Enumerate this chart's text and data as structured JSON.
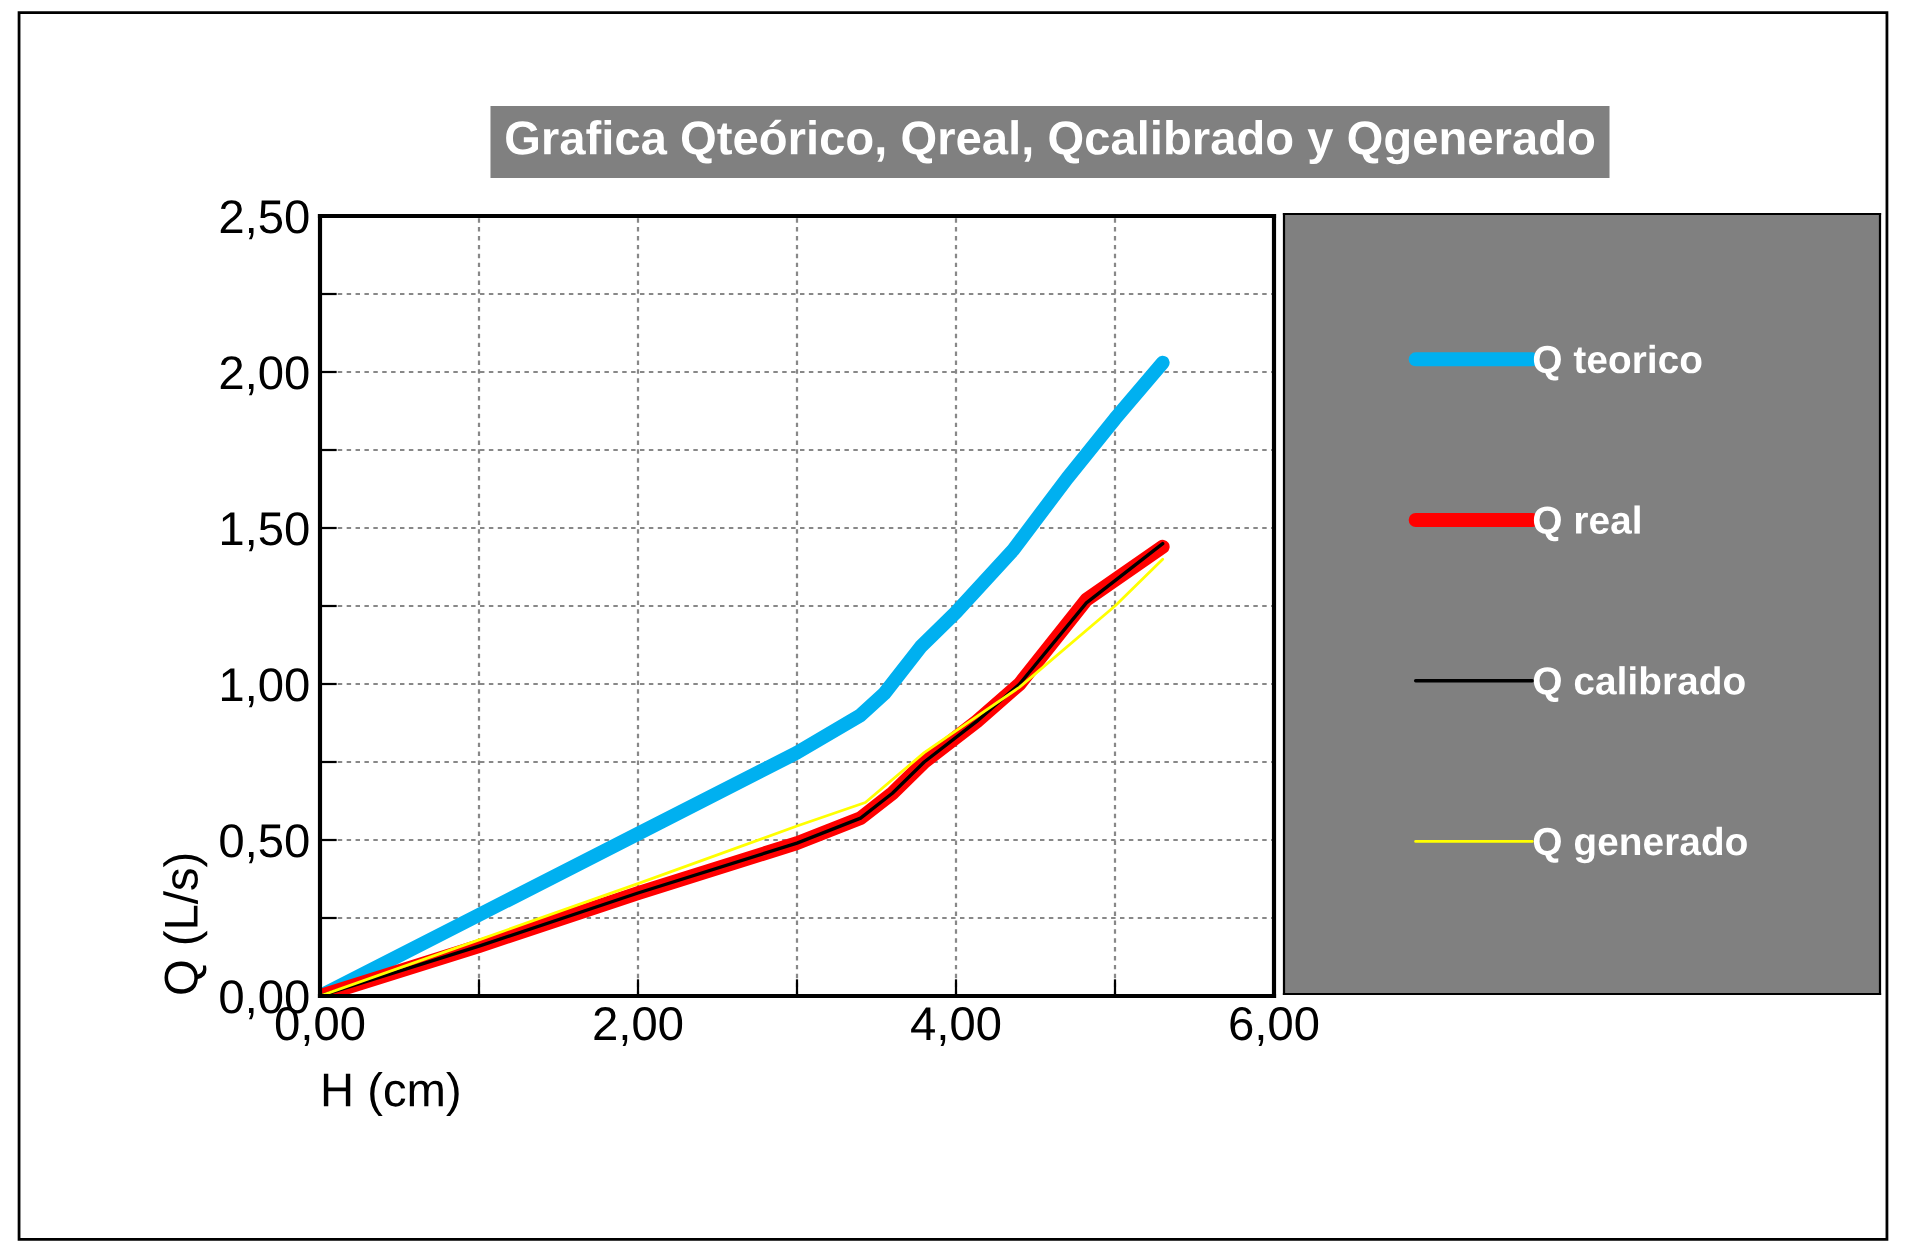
{
  "chart_data": {
    "type": "line",
    "title": "Grafica Qteórico, Qreal, Qcalibrado y Qgenerado",
    "xlabel": "H (cm)",
    "ylabel": "Q (L/s)",
    "xlim": [
      0,
      6
    ],
    "ylim": [
      0,
      2.5
    ],
    "xticks": [
      {
        "value": 0,
        "label": "0,00"
      },
      {
        "value": 1,
        "label": null
      },
      {
        "value": 2,
        "label": "2,00"
      },
      {
        "value": 3,
        "label": null
      },
      {
        "value": 4,
        "label": "4,00"
      },
      {
        "value": 5,
        "label": null
      },
      {
        "value": 6,
        "label": "6,00"
      }
    ],
    "yticks": [
      {
        "value": 0,
        "label": "0,00"
      },
      {
        "value": 0.25,
        "label": null
      },
      {
        "value": 0.5,
        "label": "0,50"
      },
      {
        "value": 0.75,
        "label": null
      },
      {
        "value": 1,
        "label": "1,00"
      },
      {
        "value": 1.25,
        "label": null
      },
      {
        "value": 1.5,
        "label": "1,50"
      },
      {
        "value": 1.75,
        "label": null
      },
      {
        "value": 2,
        "label": "2,00"
      },
      {
        "value": 2.25,
        "label": null
      },
      {
        "value": 2.5,
        "label": "2,50"
      }
    ],
    "grid": true,
    "legend": "right",
    "marker": "none",
    "line_style": "solid",
    "series": [
      {
        "name": "Q teorico",
        "color": "#00b0f0",
        "x": [
          0,
          1,
          2,
          3,
          3.4,
          3.55,
          3.78,
          4.0,
          4.36,
          4.7,
          5.0,
          5.3
        ],
        "values": [
          0,
          0.26,
          0.52,
          0.78,
          0.9,
          0.97,
          1.12,
          1.23,
          1.43,
          1.66,
          1.85,
          2.03
        ]
      },
      {
        "name": "Q real",
        "color": "#ff0000",
        "x": [
          0,
          1,
          2,
          3,
          3.4,
          3.6,
          3.8,
          4.13,
          4.4,
          4.82,
          5.3
        ],
        "values": [
          0,
          0.16,
          0.33,
          0.49,
          0.57,
          0.65,
          0.75,
          0.88,
          1.0,
          1.27,
          1.44
        ]
      },
      {
        "name": "Q calibrado",
        "color": "#000000",
        "x": [
          0,
          1,
          2,
          3,
          3.4,
          3.6,
          3.8,
          4.13,
          4.4,
          4.82,
          5.3
        ],
        "values": [
          0,
          0.16,
          0.33,
          0.49,
          0.57,
          0.65,
          0.75,
          0.88,
          1.0,
          1.26,
          1.45
        ]
      },
      {
        "name": "Q generado",
        "color": "#ffff00",
        "x": [
          0,
          1,
          2,
          3,
          3.43,
          3.8,
          4.4,
          5.0,
          5.3
        ],
        "values": [
          0,
          0.18,
          0.36,
          0.545,
          0.62,
          0.78,
          0.99,
          1.25,
          1.4
        ]
      }
    ]
  }
}
